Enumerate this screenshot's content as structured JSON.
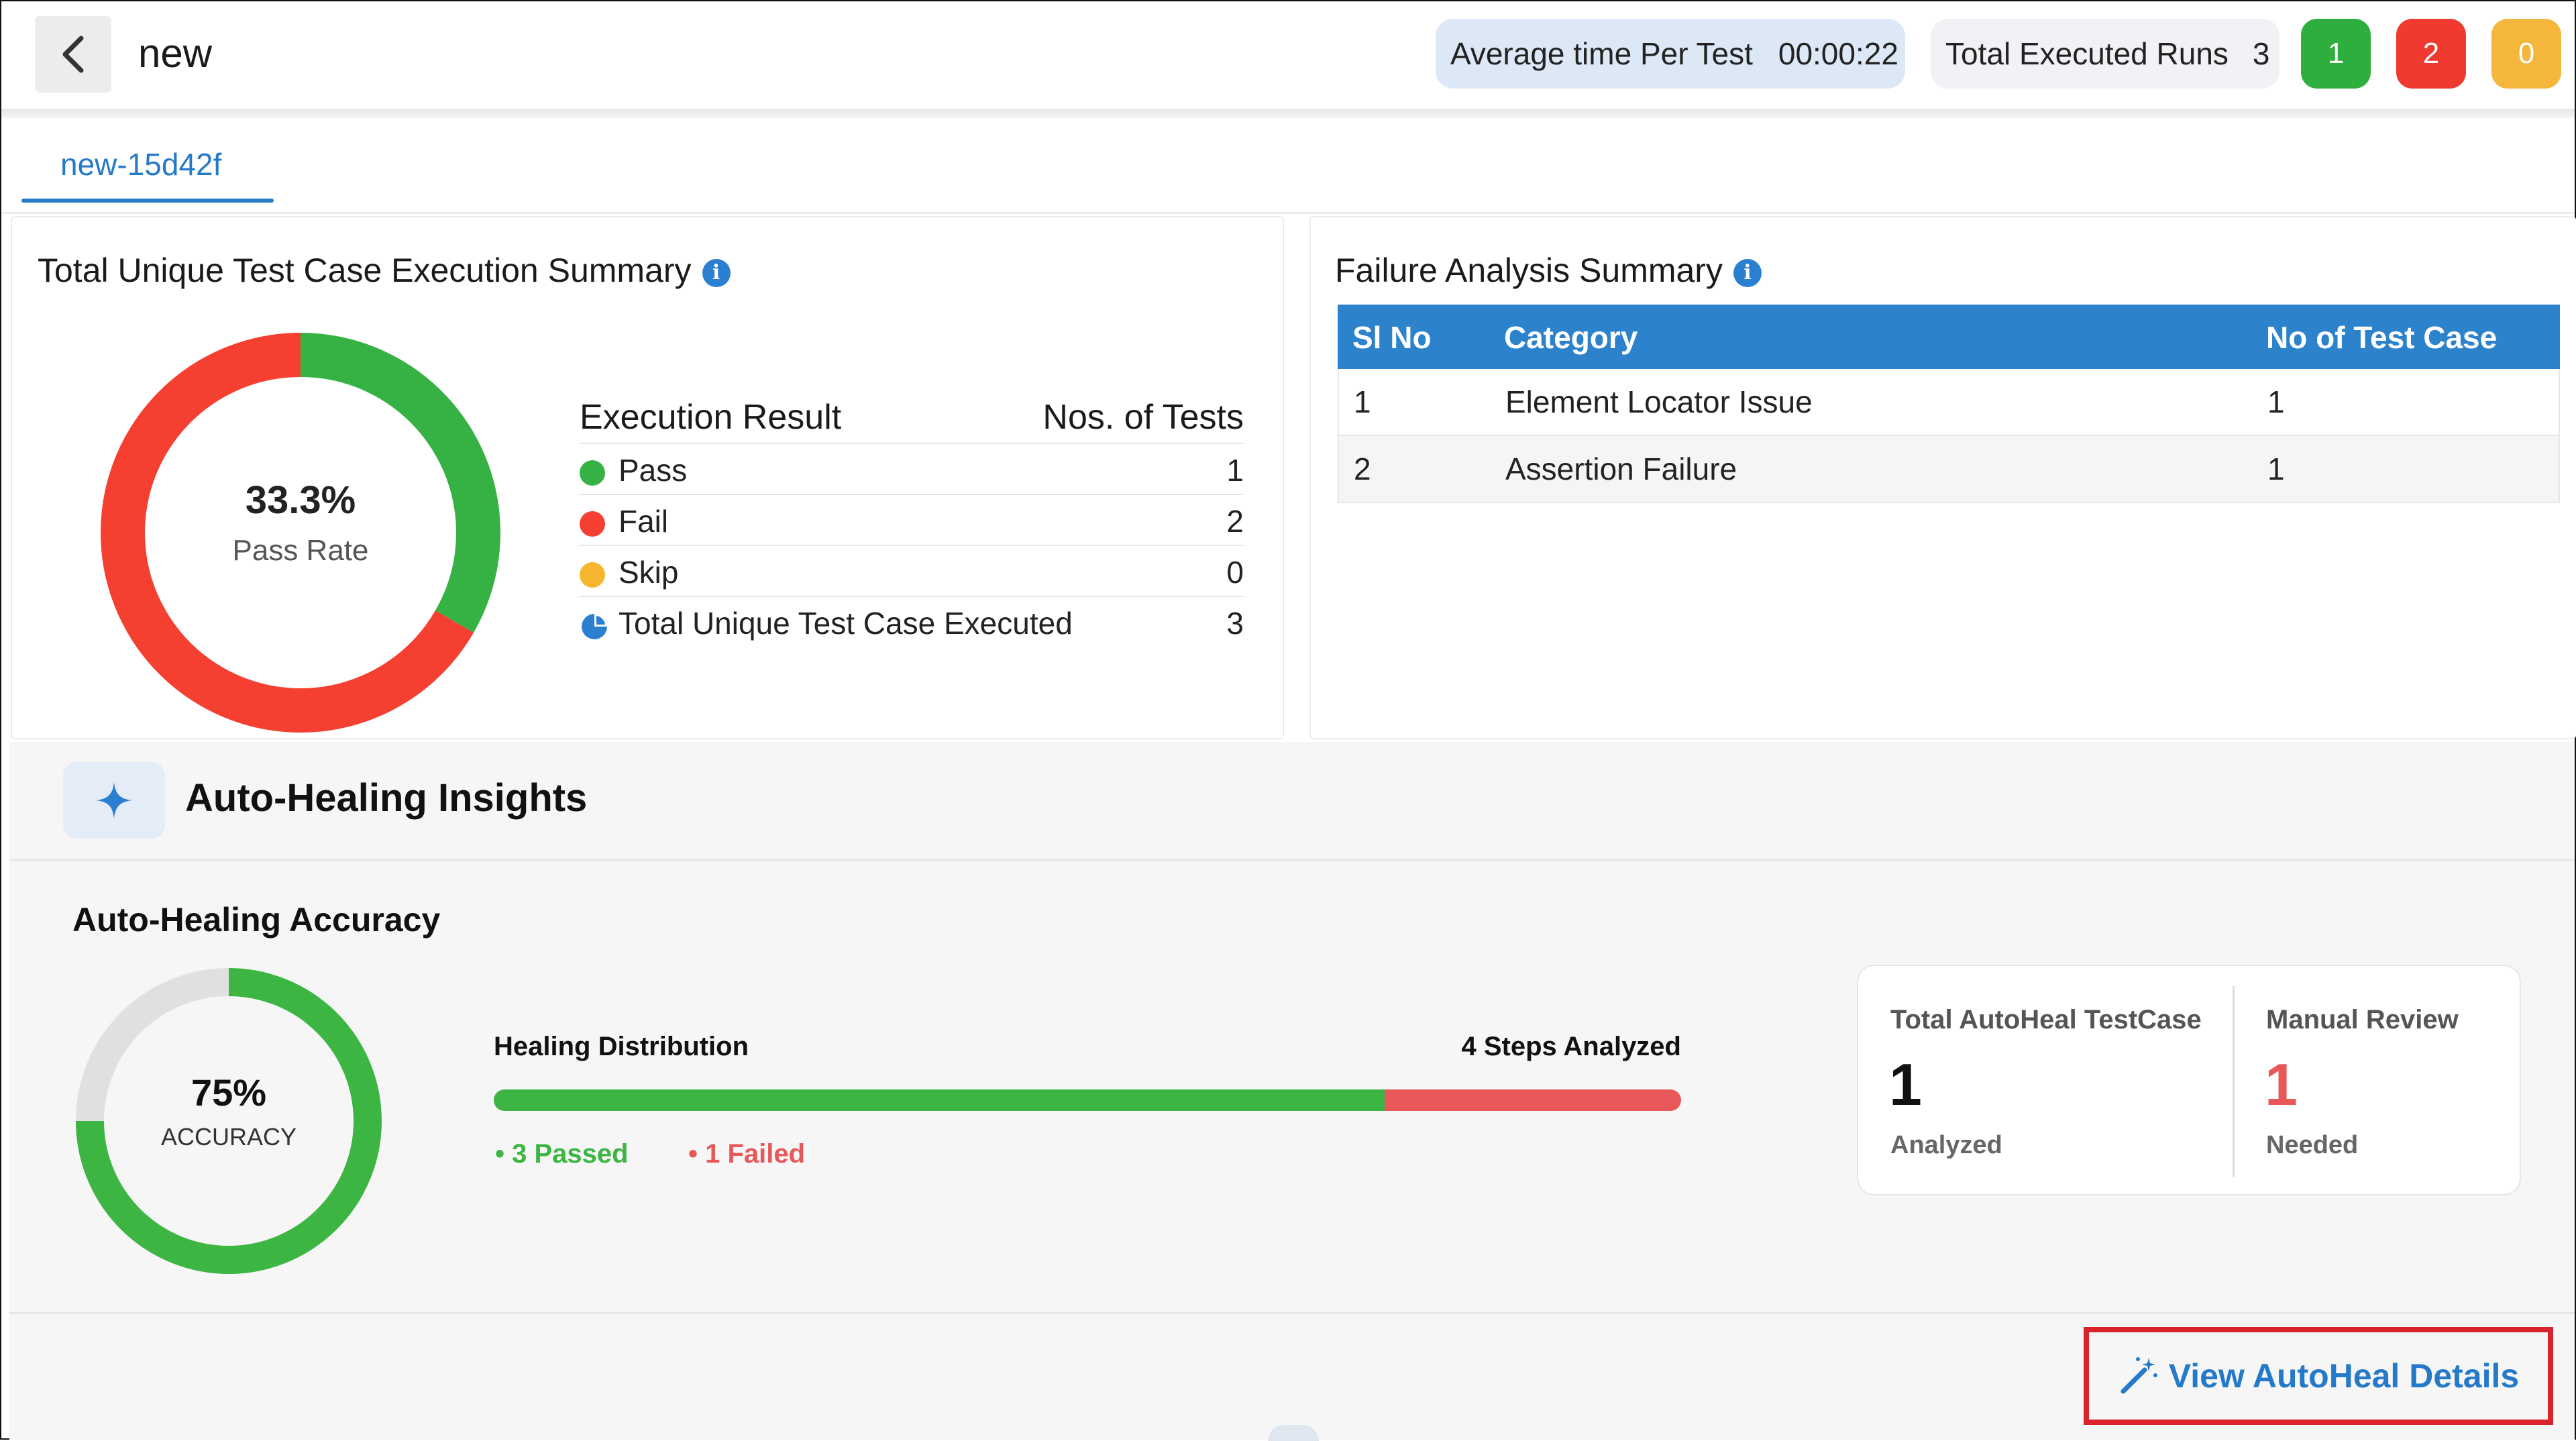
{
  "header": {
    "title": "new",
    "avg_time_label": "Average time Per Test",
    "avg_time_value": "00:00:22",
    "total_runs_label": "Total Executed Runs",
    "total_runs_value": "3",
    "badges": [
      {
        "name": "pass",
        "value": "1",
        "color": "#2eae3c"
      },
      {
        "name": "fail",
        "value": "2",
        "color": "#f0392f"
      },
      {
        "name": "skip",
        "value": "0",
        "color": "#f4b73b"
      }
    ]
  },
  "tabs": [
    {
      "label": "new-15d42f",
      "active": true
    }
  ],
  "execution_summary": {
    "title": "Total Unique Test Case Execution Summary",
    "pass_rate_value": "33.3%",
    "pass_rate_label": "Pass Rate",
    "col_result": "Execution Result",
    "col_count": "Nos. of Tests",
    "rows": [
      {
        "label": "Pass",
        "value": "1",
        "color": "#36b244"
      },
      {
        "label": "Fail",
        "value": "2",
        "color": "#f43f31"
      },
      {
        "label": "Skip",
        "value": "0",
        "color": "#f6b72e"
      },
      {
        "label": "Total Unique Test Case Executed",
        "value": "3",
        "icon": "pie-chart-icon"
      }
    ],
    "donut": {
      "pass": 1,
      "fail": 2,
      "skip": 0
    }
  },
  "failure_analysis": {
    "title": "Failure Analysis Summary",
    "columns": [
      "Sl No",
      "Category",
      "No of Test Case"
    ],
    "rows": [
      [
        "1",
        "Element Locator Issue",
        "1"
      ],
      [
        "2",
        "Assertion Failure",
        "1"
      ]
    ]
  },
  "auto_healing": {
    "section_title": "Auto-Healing Insights",
    "accuracy_title": "Auto-Healing Accuracy",
    "accuracy_value": "75%",
    "accuracy_label": "ACCURACY",
    "accuracy_fraction": 0.75,
    "distribution_title": "Healing Distribution",
    "steps_analyzed": "4 Steps Analyzed",
    "passed_label": "• 3 Passed",
    "failed_label": "• 1 Failed",
    "passed_count": 3,
    "failed_count": 1,
    "total_label": "Total AutoHeal TestCase",
    "total_value": "1",
    "total_sub": "Analyzed",
    "manual_label": "Manual Review",
    "manual_value": "1",
    "manual_sub": "Needed",
    "view_button": "View AutoHeal Details"
  }
}
